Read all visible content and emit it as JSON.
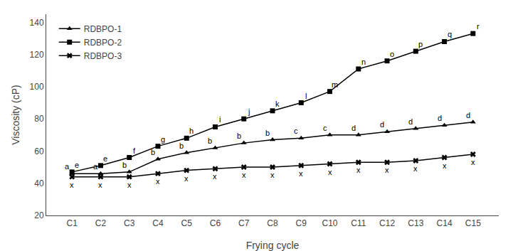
{
  "chart_data": {
    "type": "line",
    "xlabel": "Frying cycle",
    "ylabel": "Viscosity (cP)",
    "categories": [
      "C1",
      "C2",
      "C3",
      "C4",
      "C5",
      "C6",
      "C7",
      "C8",
      "C9",
      "C10",
      "C11",
      "C12",
      "C13",
      "C14",
      "C15"
    ],
    "series": [
      {
        "name": "RDBPO-1",
        "color": "#000000",
        "marker": "triangle",
        "values": [
          46,
          46,
          47,
          55,
          59,
          62,
          65,
          67,
          68,
          70,
          70,
          72,
          74,
          76,
          78
        ],
        "annotations": [
          "a",
          "a",
          "b",
          "b",
          "b",
          "b",
          "b",
          "b",
          "c",
          "c",
          "d",
          "d",
          "d",
          "d",
          "d"
        ]
      },
      {
        "name": "RDBPO-2",
        "color": "#000000",
        "marker": "square",
        "values": [
          47,
          51,
          56,
          63,
          68,
          75,
          80,
          85,
          90,
          97,
          111,
          116,
          122,
          128,
          133
        ],
        "annotations": [
          "e",
          "e",
          "f",
          "g",
          "h",
          "i",
          "j",
          "k",
          "l",
          "m",
          "n",
          "o",
          "p",
          "q",
          "r"
        ]
      },
      {
        "name": "RDBPO-3",
        "color": "#000000",
        "marker": "x",
        "values": [
          44,
          44,
          44,
          46,
          48,
          49,
          50,
          50,
          51,
          52,
          53,
          53,
          54,
          56,
          58
        ],
        "annotations": [
          "x",
          "x",
          "x",
          "x",
          "x",
          "x",
          "x",
          "x",
          "x",
          "x",
          "x",
          "x",
          "x",
          "x",
          "x"
        ]
      }
    ],
    "ylim": [
      20,
      145
    ],
    "yticks": [
      20,
      40,
      60,
      80,
      100,
      120,
      140
    ],
    "grid": false,
    "legend": "upper left"
  }
}
